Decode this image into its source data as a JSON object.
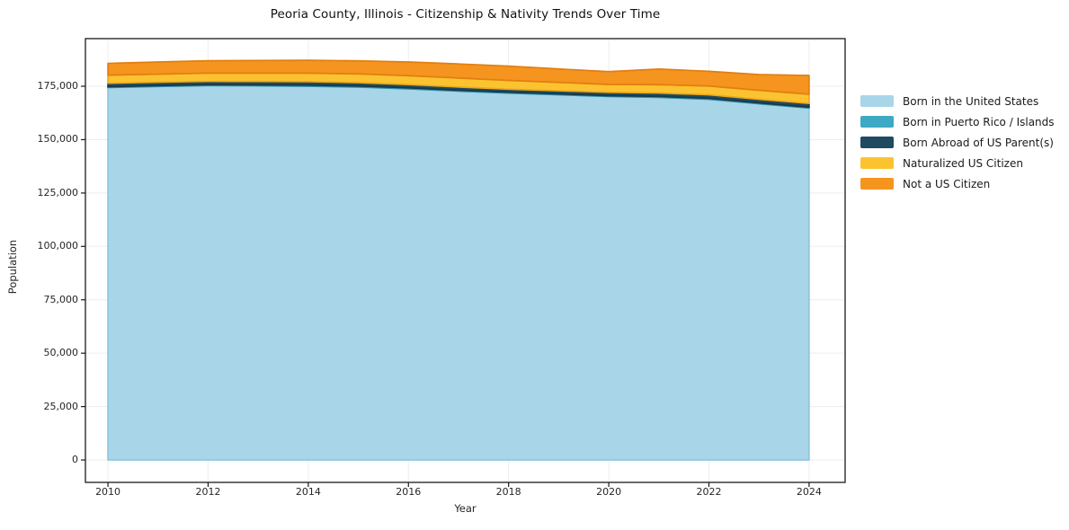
{
  "chart_data": {
    "type": "area",
    "stacked": true,
    "title": "Peoria County, Illinois - Citizenship & Nativity Trends Over Time",
    "xlabel": "Year",
    "ylabel": "Population",
    "x": [
      2010,
      2011,
      2012,
      2013,
      2014,
      2015,
      2016,
      2017,
      2018,
      2019,
      2020,
      2021,
      2022,
      2023,
      2024
    ],
    "series": [
      {
        "name": "Born in the United States",
        "color": "#a8d5e8",
        "edge": "#8fc6dd",
        "values": [
          174400,
          174900,
          175300,
          175200,
          175000,
          174600,
          173800,
          172700,
          171800,
          171000,
          170200,
          169800,
          168900,
          166800,
          164800
        ]
      },
      {
        "name": "Born in Puerto Rico / Islands",
        "color": "#3da9c5",
        "edge": "#2f8fa8",
        "values": [
          400,
          400,
          450,
          450,
          500,
          500,
          450,
          450,
          400,
          400,
          400,
          450,
          450,
          400,
          400
        ]
      },
      {
        "name": "Born Abroad of US Parent(s)",
        "color": "#204a5f",
        "edge": "#16394a",
        "values": [
          1600,
          1600,
          1550,
          1600,
          1650,
          1600,
          1550,
          1500,
          1450,
          1500,
          1550,
          1600,
          1650,
          1700,
          1750
        ]
      },
      {
        "name": "Naturalized US Citizen",
        "color": "#fcc331",
        "edge": "#f0a81c",
        "values": [
          3800,
          3750,
          3850,
          3900,
          4000,
          4100,
          4150,
          4200,
          4100,
          3900,
          3700,
          3900,
          4100,
          4200,
          4300
        ]
      },
      {
        "name": "Not a US Citizen",
        "color": "#f69420",
        "edge": "#e07f10",
        "values": [
          5500,
          5700,
          5800,
          5900,
          6000,
          6100,
          6400,
          6600,
          6700,
          6300,
          6000,
          7300,
          6900,
          7400,
          8800
        ]
      }
    ],
    "xlim": [
      2009.55,
      2024.72
    ],
    "ylim": [
      -10500,
      197300
    ],
    "x_ticks": {
      "values": [
        2010,
        2012,
        2014,
        2016,
        2018,
        2020,
        2022,
        2024
      ],
      "labels": [
        "2010",
        "2012",
        "2014",
        "2016",
        "2018",
        "2020",
        "2022",
        "2024"
      ]
    },
    "y_ticks": {
      "values": [
        0,
        25000,
        50000,
        75000,
        100000,
        125000,
        150000,
        175000
      ],
      "labels": [
        "0",
        "25,000",
        "50,000",
        "75,000",
        "100,000",
        "125,000",
        "150,000",
        "175,000"
      ]
    },
    "grid": true,
    "grid_color": "#ededed",
    "spine_color": "#1a1a1a",
    "legend_position": "right outside"
  }
}
